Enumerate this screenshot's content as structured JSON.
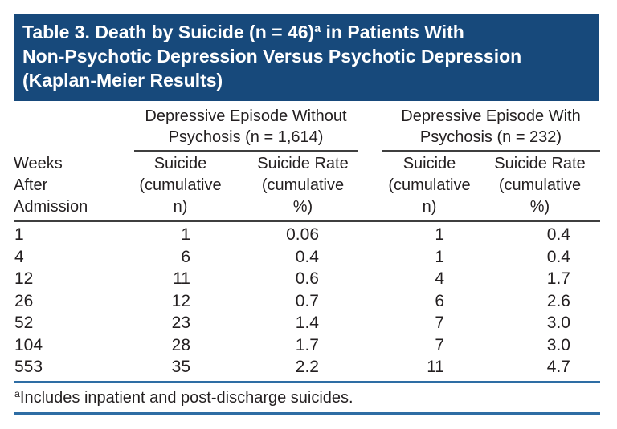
{
  "colors": {
    "header_bg": "#17497b",
    "header_text": "#ffffff",
    "dark_rule": "#3f3f3f",
    "blue_rule": "#2e6da4",
    "body_text": "#231f20"
  },
  "table": {
    "title": {
      "line1_pre": "Table 3. Death by Suicide (n = 46)",
      "line1_sup": "a",
      "line1_post": " in Patients With",
      "line2": "Non-Psychotic Depression Versus Psychotic Depression",
      "line3": "(Kaplan-Meier Results)"
    },
    "row_header": {
      "line1": "Weeks",
      "line2": "After",
      "line3": "Admission"
    },
    "groups": [
      {
        "line1": "Depressive Episode Without",
        "line2": "Psychosis (n = 1,614)"
      },
      {
        "line1": "Depressive Episode With",
        "line2": "Psychosis (n = 232)"
      }
    ],
    "subheaders": [
      {
        "line1": "Suicide",
        "line2": "(cumulative",
        "line3": "n)"
      },
      {
        "line1": "Suicide Rate",
        "line2": "(cumulative",
        "line3": "%)"
      },
      {
        "line1": "Suicide",
        "line2": "(cumulative",
        "line3": "n)"
      },
      {
        "line1": "Suicide Rate",
        "line2": "(cumulative",
        "line3": "%)"
      }
    ],
    "rows": [
      {
        "weeks": "1",
        "n1": "1",
        "rate1": "0.06",
        "n2": "1",
        "rate2": "0.4"
      },
      {
        "weeks": "4",
        "n1": "6",
        "rate1": "0.4",
        "n2": "1",
        "rate2": "0.4"
      },
      {
        "weeks": "12",
        "n1": "11",
        "rate1": "0.6",
        "n2": "4",
        "rate2": "1.7"
      },
      {
        "weeks": "26",
        "n1": "12",
        "rate1": "0.7",
        "n2": "6",
        "rate2": "2.6"
      },
      {
        "weeks": "52",
        "n1": "23",
        "rate1": "1.4",
        "n2": "7",
        "rate2": "3.0"
      },
      {
        "weeks": "104",
        "n1": "28",
        "rate1": "1.7",
        "n2": "7",
        "rate2": "3.0"
      },
      {
        "weeks": "553",
        "n1": "35",
        "rate1": "2.2",
        "n2": "11",
        "rate2": "4.7"
      }
    ],
    "footnote": {
      "sup": "a",
      "text": "Includes inpatient and post-discharge suicides."
    }
  }
}
